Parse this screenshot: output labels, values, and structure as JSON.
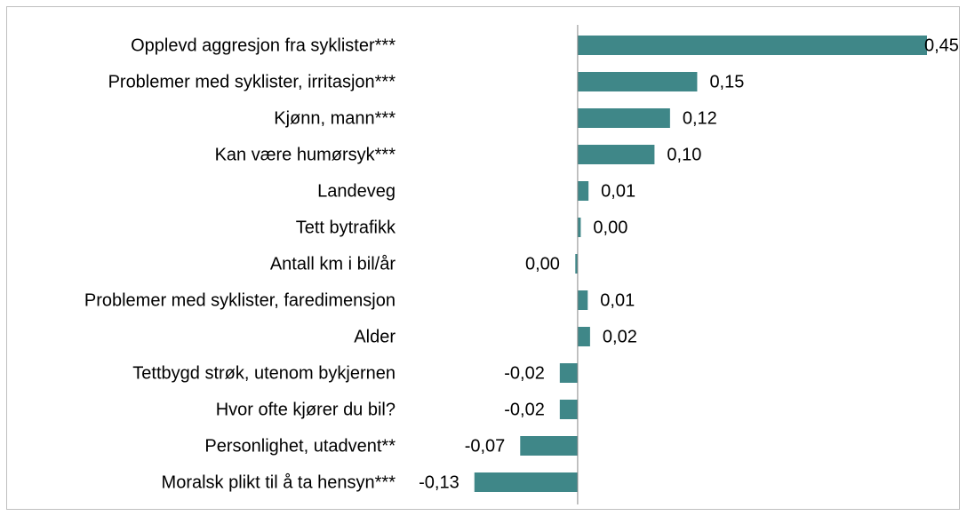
{
  "chart_data": {
    "type": "bar",
    "orientation": "horizontal",
    "categories": [
      "Opplevd aggresjon fra syklister***",
      "Problemer med syklister, irritasjon***",
      "Kjønn, mann***",
      "Kan være humørsyk***",
      "Landeveg",
      "Tett bytrafikk",
      "Antall km i bil/år",
      "Problemer med syklister, faredimensjon",
      "Alder",
      "Tettbygd strøk, utenom bykjernen",
      "Hvor ofte kjører du bil?",
      "Personlighet, utadvent**",
      "Moralsk plikt til å ta hensyn***"
    ],
    "values": [
      0.45,
      0.154,
      0.119,
      0.099,
      0.014,
      0.004,
      -0.003,
      0.013,
      0.016,
      -0.023,
      -0.023,
      -0.074,
      -0.133
    ],
    "value_labels": [
      "0,45",
      "0,15",
      "0,12",
      "0,10",
      "0,01",
      "0,00",
      "0,00",
      "0,01",
      "0,02",
      "-0,02",
      "-0,02",
      "-0,07",
      "-0,13"
    ],
    "color": "#3f8788",
    "xlim": [
      -0.135,
      0.45
    ]
  }
}
